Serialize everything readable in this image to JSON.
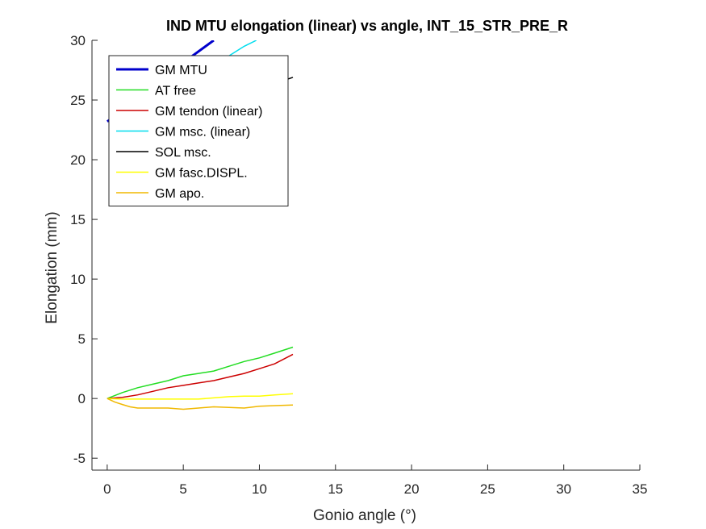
{
  "chart_data": {
    "type": "line",
    "title": "IND MTU elongation (linear) vs angle, INT_15_STR_PRE_R",
    "xlabel": "Gonio angle (°)",
    "ylabel": "Elongation (mm)",
    "xlim": [
      -1,
      35
    ],
    "ylim": [
      -6,
      30
    ],
    "xticks": [
      0,
      5,
      10,
      15,
      20,
      25,
      30,
      35
    ],
    "yticks": [
      -5,
      0,
      5,
      10,
      15,
      20,
      25,
      30
    ],
    "grid": false,
    "legend_position": "top-left",
    "series": [
      {
        "name": "GM MTU",
        "color": "#0000CC",
        "width": 3,
        "x": [
          0,
          2,
          4,
          5.5,
          7
        ],
        "y": [
          23.2,
          25.0,
          27.0,
          28.6,
          30.0
        ]
      },
      {
        "name": "AT free",
        "color": "#22DD22",
        "width": 1.5,
        "x": [
          0,
          1,
          2,
          3,
          4,
          5,
          6,
          7,
          8,
          9,
          10,
          11,
          12.2
        ],
        "y": [
          0,
          0.5,
          0.9,
          1.2,
          1.5,
          1.9,
          2.1,
          2.3,
          2.7,
          3.1,
          3.4,
          3.8,
          4.3
        ]
      },
      {
        "name": "GM tendon (linear)",
        "color": "#CC0000",
        "width": 1.5,
        "x": [
          0,
          1,
          2,
          3,
          4,
          5,
          6,
          7,
          8,
          9,
          10,
          11,
          12.2
        ],
        "y": [
          0,
          0.1,
          0.3,
          0.6,
          0.9,
          1.1,
          1.3,
          1.5,
          1.8,
          2.1,
          2.5,
          2.9,
          3.7
        ]
      },
      {
        "name": "GM msc. (linear)",
        "color": "#00DDEE",
        "width": 1.5,
        "x": [
          4.5,
          6,
          7.5,
          9,
          9.8
        ],
        "y": [
          25.6,
          27.0,
          28.3,
          29.5,
          30.0
        ]
      },
      {
        "name": "SOL msc.",
        "color": "#000000",
        "width": 1.5,
        "x": [
          11.5,
          12.2
        ],
        "y": [
          26.6,
          26.9
        ]
      },
      {
        "name": "GM fasc.DISPL.",
        "color": "#FFFF00",
        "width": 1.5,
        "x": [
          0,
          1,
          2,
          3,
          4,
          5,
          6,
          7,
          8,
          9,
          10,
          11,
          12.2
        ],
        "y": [
          0,
          -0.05,
          -0.05,
          -0.05,
          -0.05,
          -0.05,
          -0.05,
          0.05,
          0.15,
          0.2,
          0.2,
          0.3,
          0.4
        ]
      },
      {
        "name": "GM apo.",
        "color": "#F0B800",
        "width": 1.5,
        "x": [
          0,
          0.5,
          1,
          1.5,
          2,
          3,
          4,
          5,
          6,
          7,
          8,
          9,
          10,
          11,
          12.2
        ],
        "y": [
          0,
          -0.3,
          -0.5,
          -0.7,
          -0.8,
          -0.8,
          -0.8,
          -0.9,
          -0.8,
          -0.7,
          -0.75,
          -0.8,
          -0.65,
          -0.6,
          -0.55
        ]
      }
    ]
  }
}
